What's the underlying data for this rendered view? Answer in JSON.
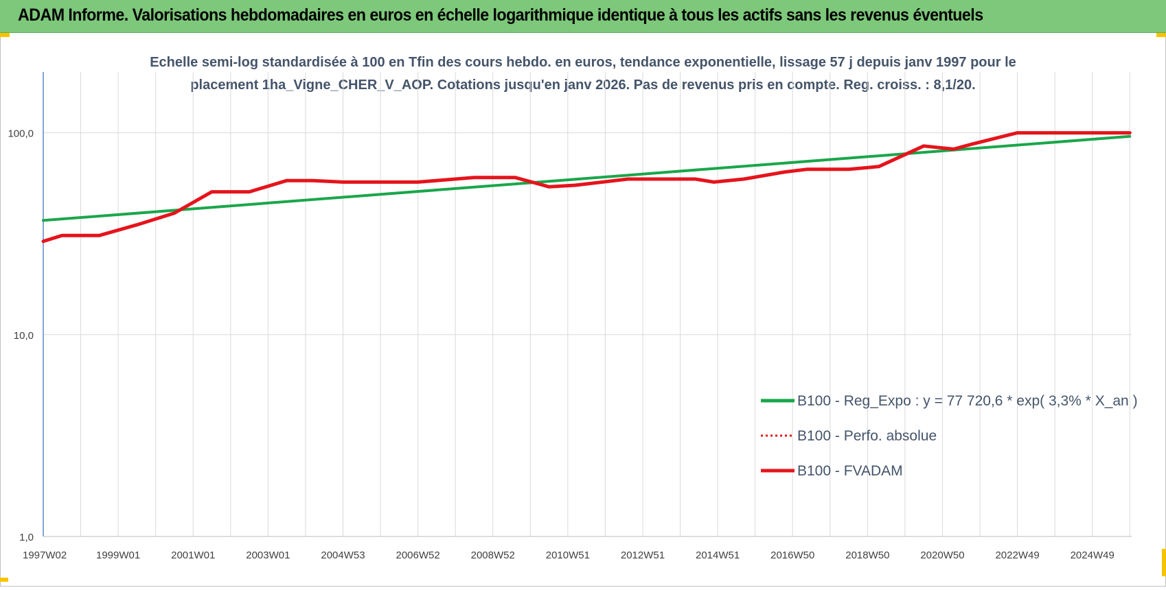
{
  "banner": {
    "title": "ADAM Informe. Valorisations hebdomadaires en euros en échelle logarithmique identique à tous les actifs sans les revenus éventuels"
  },
  "colors": {
    "banner_bg": "#7dc87a",
    "trend_line": "#1aa64b",
    "fvadam_line": "#e5141c",
    "perf_line": "#e5141c",
    "axis_line": "#4472c4",
    "grid": "#d9d9d9",
    "text": "#404040",
    "corner_marks": "#f5c400"
  },
  "chart_data": {
    "type": "line",
    "title_line1": "Echelle semi-log standardisée à 100 en Tfin des cours hebdo. en euros, tendance exponentielle, lissage 57 j depuis janv 1997 pour le",
    "title_line2": "placement 1ha_Vigne_CHER_V_AOP. Cotations jusqu'en janv 2026. Pas de revenus pris en compte. Reg. croiss. : 8,1/20.",
    "y_scale": "log",
    "ylim": [
      1,
      200
    ],
    "y_ticks": [
      {
        "value": 1,
        "label": "1,0"
      },
      {
        "value": 10,
        "label": "10,0"
      },
      {
        "value": 100,
        "label": "100,0"
      }
    ],
    "xlim": [
      1997.0,
      2026.05
    ],
    "x_ticks": [
      {
        "value": 1997.0,
        "label": "1997W02"
      },
      {
        "value": 1999.0,
        "label": "1999W01"
      },
      {
        "value": 2001.0,
        "label": "2001W01"
      },
      {
        "value": 2003.0,
        "label": "2003W01"
      },
      {
        "value": 2005.0,
        "label": "2004W53"
      },
      {
        "value": 2007.0,
        "label": "2006W52"
      },
      {
        "value": 2009.0,
        "label": "2008W52"
      },
      {
        "value": 2011.0,
        "label": "2010W51"
      },
      {
        "value": 2013.0,
        "label": "2012W51"
      },
      {
        "value": 2015.0,
        "label": "2014W51"
      },
      {
        "value": 2017.0,
        "label": "2016W50"
      },
      {
        "value": 2019.0,
        "label": "2018W50"
      },
      {
        "value": 2021.0,
        "label": "2020W50"
      },
      {
        "value": 2023.0,
        "label": "2022W49"
      },
      {
        "value": 2025.0,
        "label": "2024W49"
      }
    ],
    "grid": true,
    "legend_position": "right",
    "series": [
      {
        "name": "B100 - Reg_Expo : y = 77 720,6 * exp( 3,3% *  X_an )",
        "color": "#1aa64b",
        "style": "solid",
        "x": [
          1997.0,
          2026.0
        ],
        "y": [
          36.8,
          96.0
        ]
      },
      {
        "name": "B100 - Perfo. absolue",
        "color": "#e5141c",
        "style": "dotted",
        "x": [],
        "y": []
      },
      {
        "name": "B100 - FVADAM",
        "color": "#e5141c",
        "style": "solid",
        "x": [
          1997.0,
          1997.5,
          1998.5,
          1999.5,
          2000.5,
          2001.5,
          2002.5,
          2003.5,
          2004.2,
          2005.0,
          2007.0,
          2008.5,
          2009.6,
          2010.5,
          2011.2,
          2012.6,
          2014.4,
          2014.9,
          2015.7,
          2016.8,
          2017.4,
          2018.5,
          2019.3,
          2020.5,
          2021.3,
          2021.8,
          2023.0,
          2025.0,
          2026.0
        ],
        "y": [
          29.0,
          31.0,
          31.0,
          35.0,
          40.0,
          51.0,
          51.0,
          58.0,
          58.0,
          57.0,
          57.0,
          60.0,
          60.0,
          54.0,
          55.0,
          59.0,
          59.0,
          57.0,
          59.0,
          64.0,
          66.0,
          66.0,
          68.0,
          86.0,
          83.0,
          88.0,
          100.0,
          100.0,
          100.0
        ]
      }
    ]
  }
}
